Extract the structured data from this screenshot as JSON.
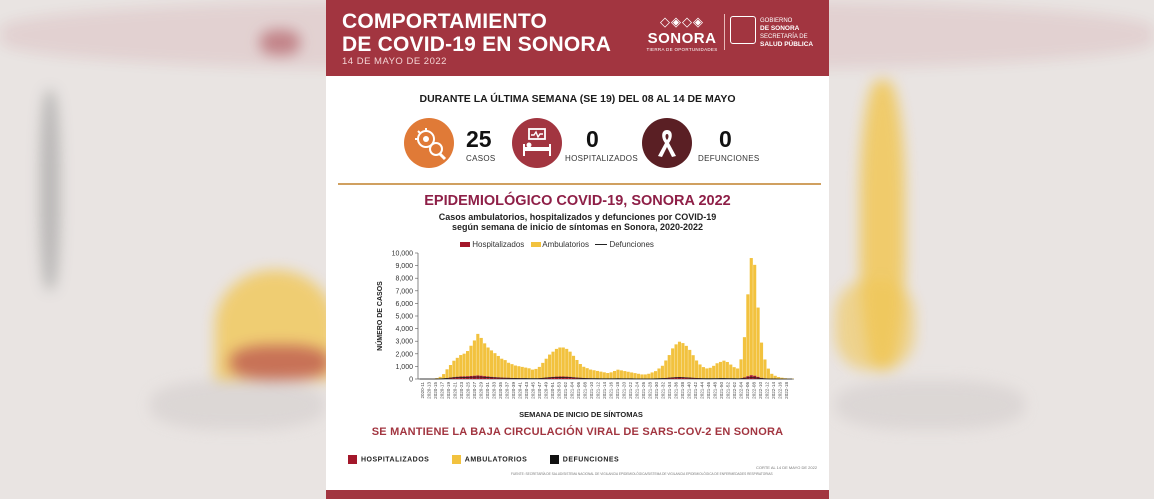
{
  "banner": {
    "title_line1": "COMPORTAMIENTO",
    "title_line2": "DE COVID-19 EN SONORA",
    "date": "14 DE MAYO DE 2022",
    "logo_name": "SONORA",
    "logo_tagline": "TIERRA DE OPORTUNIDADES",
    "gob_line1": "GOBIERNO",
    "gob_line2": "DE SONORA",
    "gob_line3": "SECRETARÍA DE",
    "gob_line4": "SALUD PÚBLICA"
  },
  "week": {
    "heading": "DURANTE LA ÚLTIMA SEMANA (SE 19) DEL 08 AL 14 DE MAYO",
    "stats": [
      {
        "value": "25",
        "label": "CASOS",
        "icon": "virus-magnifier-icon",
        "color": "#e07a37"
      },
      {
        "value": "0",
        "label": "HOSPITALIZADOS",
        "icon": "hospital-bed-icon",
        "color": "#a23540"
      },
      {
        "value": "0",
        "label": "DEFUNCIONES",
        "icon": "awareness-ribbon-icon",
        "color": "#5a1f24"
      }
    ]
  },
  "epi": {
    "title": "EPIDEMIOLÓGICO COVID-19, SONORA 2022",
    "subtitle_line1": "Casos ambulatorios, hospitalizados y defunciones por COVID-19",
    "subtitle_line2": "según semana de inicio de síntomas en Sonora, 2020-2022"
  },
  "chart_data": {
    "type": "bar",
    "title": "",
    "xlabel": "SEMANA DE INICIO DE SÍNTOMAS",
    "ylabel": "NÚMERO DE CASOS",
    "ylim": [
      0,
      10000
    ],
    "yticks": [
      "0",
      "1,000",
      "2,000",
      "3,000",
      "4,000",
      "5,000",
      "6,000",
      "7,000",
      "8,000",
      "9,000",
      "10,000"
    ],
    "legend": [
      "Hospitalizados",
      "Ambulatorios",
      "Defunciones"
    ],
    "colors": {
      "hospitalizados": "#a3172a",
      "ambulatorios": "#f2c23e",
      "defunciones": "#222222"
    },
    "x_labels": [
      "2020-11",
      "2020-13",
      "2020-15",
      "2020-17",
      "2020-19",
      "2020-21",
      "2020-23",
      "2020-25",
      "2020-27",
      "2020-29",
      "2020-31",
      "2020-33",
      "2020-35",
      "2020-37",
      "2020-39",
      "2020-41",
      "2020-43",
      "2020-45",
      "2020-47",
      "2020-49",
      "2020-51",
      "2020-53",
      "2021-02",
      "2021-04",
      "2021-06",
      "2021-08",
      "2021-10",
      "2021-12",
      "2021-14",
      "2021-16",
      "2021-18",
      "2021-20",
      "2021-22",
      "2021-24",
      "2021-26",
      "2021-28",
      "2021-30",
      "2021-32",
      "2021-34",
      "2021-36",
      "2021-38",
      "2021-40",
      "2021-42",
      "2021-44",
      "2021-46",
      "2021-48",
      "2021-50",
      "2021-52",
      "2022-02",
      "2022-04",
      "2022-06",
      "2022-08",
      "2022-10",
      "2022-12",
      "2022-14",
      "2022-16",
      "2022-18"
    ],
    "series": [
      {
        "name": "Ambulatorios",
        "values": [
          0,
          0,
          0,
          5,
          20,
          60,
          150,
          350,
          700,
          1000,
          1300,
          1500,
          1700,
          1800,
          2000,
          2400,
          2800,
          3300,
          3000,
          2600,
          2300,
          2100,
          1900,
          1700,
          1500,
          1400,
          1200,
          1100,
          1000,
          950,
          900,
          850,
          800,
          700,
          750,
          900,
          1200,
          1500,
          1800,
          2000,
          2200,
          2300,
          2300,
          2200,
          2000,
          1700,
          1400,
          1100,
          900,
          800,
          700,
          650,
          600,
          550,
          500,
          450,
          500,
          600,
          700,
          650,
          600,
          550,
          500,
          450,
          400,
          350,
          350,
          400,
          500,
          600,
          800,
          1000,
          1400,
          1800,
          2300,
          2600,
          2800,
          2700,
          2500,
          2200,
          1800,
          1400,
          1100,
          900,
          800,
          850,
          1000,
          1200,
          1300,
          1400,
          1300,
          1100,
          900,
          800,
          1500,
          3200,
          6500,
          9300,
          8800,
          5500,
          2800,
          1500,
          800,
          400,
          250,
          150,
          100,
          60,
          40,
          25
        ]
      },
      {
        "name": "Hospitalizados",
        "values": [
          0,
          0,
          0,
          0,
          5,
          10,
          20,
          40,
          70,
          110,
          150,
          180,
          200,
          210,
          220,
          240,
          260,
          280,
          260,
          230,
          200,
          170,
          150,
          130,
          110,
          100,
          90,
          80,
          70,
          65,
          60,
          55,
          50,
          45,
          50,
          60,
          80,
          110,
          140,
          170,
          190,
          200,
          200,
          190,
          170,
          140,
          110,
          90,
          70,
          60,
          50,
          45,
          40,
          35,
          30,
          25,
          30,
          35,
          40,
          35,
          30,
          25,
          20,
          18,
          15,
          12,
          12,
          15,
          20,
          25,
          35,
          50,
          70,
          100,
          130,
          150,
          160,
          150,
          130,
          110,
          90,
          70,
          55,
          45,
          40,
          40,
          45,
          50,
          55,
          55,
          50,
          45,
          40,
          35,
          60,
          120,
          220,
          300,
          260,
          170,
          90,
          50,
          25,
          12,
          6,
          3,
          2,
          1,
          0,
          0
        ]
      },
      {
        "name": "Defunciones",
        "values": [
          0,
          0,
          0,
          0,
          2,
          5,
          12,
          25,
          45,
          70,
          95,
          110,
          120,
          125,
          130,
          140,
          150,
          160,
          150,
          130,
          115,
          100,
          90,
          80,
          70,
          60,
          55,
          50,
          45,
          40,
          38,
          35,
          32,
          30,
          32,
          40,
          55,
          75,
          95,
          110,
          120,
          125,
          125,
          120,
          110,
          90,
          70,
          55,
          45,
          38,
          32,
          28,
          25,
          22,
          20,
          18,
          20,
          22,
          25,
          22,
          20,
          18,
          15,
          12,
          10,
          9,
          9,
          10,
          13,
          17,
          24,
          35,
          50,
          70,
          90,
          100,
          105,
          100,
          90,
          75,
          60,
          48,
          38,
          30,
          26,
          26,
          28,
          32,
          35,
          35,
          32,
          28,
          25,
          22,
          30,
          55,
          90,
          110,
          95,
          65,
          35,
          20,
          10,
          5,
          3,
          2,
          1,
          0,
          0,
          0
        ]
      }
    ]
  },
  "message": "SE MANTIENE LA BAJA CIRCULACIÓN VIRAL DE SARS-COV-2 EN SONORA",
  "footer": {
    "legend": [
      {
        "label": "HOSPITALIZADOS",
        "color": "#a3172a"
      },
      {
        "label": "AMBULATORIOS",
        "color": "#f2c23e"
      },
      {
        "label": "DEFUNCIONES",
        "color": "#111111"
      }
    ],
    "cutoff": "CORTE AL 14 DE MAYO DE 2022",
    "source": "FUENTE: SECRETARÍA DE SALUD/SISTEMA NACIONAL DE VIGILANCIA EPIDEMIOLÓGICA/SISTEMA DE VIGILANCIA EPIDEMIOLÓGICA DE ENFERMEDADES RESPIRATORIAS"
  }
}
